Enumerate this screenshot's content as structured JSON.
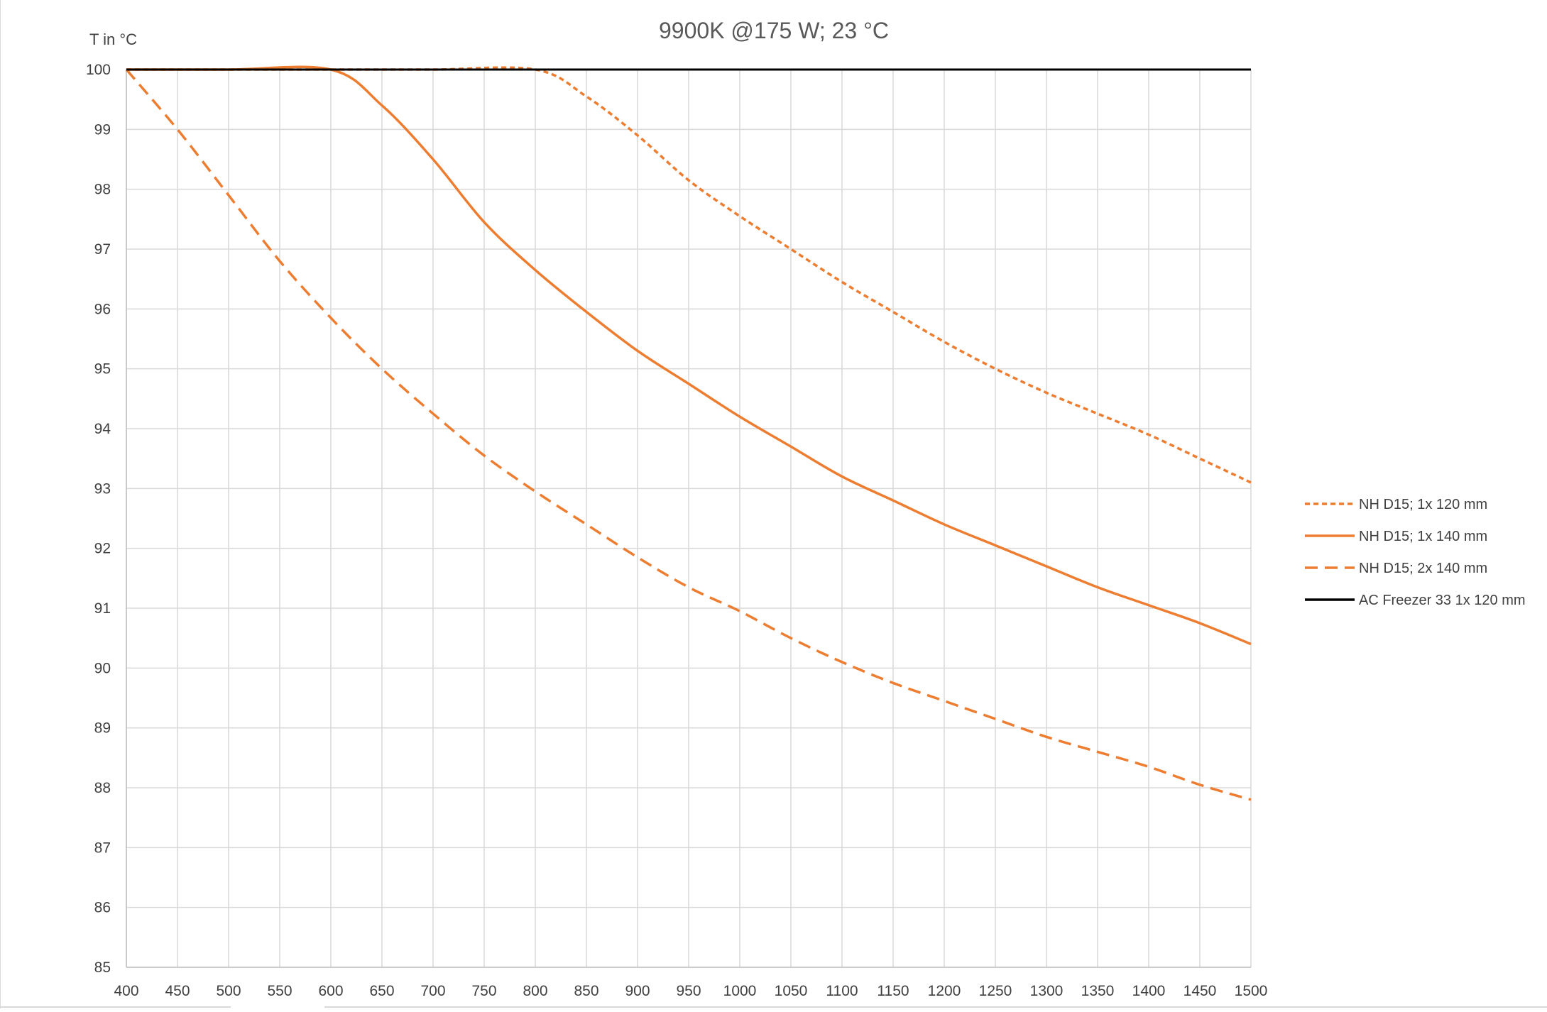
{
  "chart_data": {
    "type": "line",
    "title": "9900K @175 W; 23 °C",
    "ylabel": "T in °C",
    "xlabel": "",
    "xlim": [
      400,
      1500
    ],
    "ylim": [
      85,
      100
    ],
    "x_ticks": [
      400,
      450,
      500,
      550,
      600,
      650,
      700,
      750,
      800,
      850,
      900,
      950,
      1000,
      1050,
      1100,
      1150,
      1200,
      1250,
      1300,
      1350,
      1400,
      1450,
      1500
    ],
    "y_ticks": [
      85,
      86,
      87,
      88,
      89,
      90,
      91,
      92,
      93,
      94,
      95,
      96,
      97,
      98,
      99,
      100
    ],
    "grid": true,
    "legend_position": "right",
    "series": [
      {
        "name": "NH D15; 1x 120 mm",
        "color": "#ed7d31",
        "style": "dotted",
        "x": [
          400,
          500,
          600,
          700,
          800,
          850,
          900,
          950,
          1000,
          1050,
          1100,
          1150,
          1200,
          1250,
          1300,
          1350,
          1400,
          1450,
          1500
        ],
        "y": [
          100,
          100,
          100,
          100,
          100,
          99.55,
          98.9,
          98.15,
          97.55,
          97.0,
          96.45,
          95.95,
          95.45,
          95.0,
          94.6,
          94.25,
          93.9,
          93.5,
          93.1
        ]
      },
      {
        "name": "NH D15; 1x 140 mm",
        "color": "#ed7d31",
        "style": "solid",
        "x": [
          400,
          500,
          600,
          650,
          700,
          750,
          800,
          850,
          900,
          950,
          1000,
          1050,
          1100,
          1150,
          1200,
          1250,
          1300,
          1350,
          1400,
          1450,
          1500
        ],
        "y": [
          100,
          100,
          100,
          99.4,
          98.5,
          97.45,
          96.65,
          95.95,
          95.3,
          94.75,
          94.2,
          93.7,
          93.2,
          92.8,
          92.4,
          92.05,
          91.7,
          91.35,
          91.05,
          90.75,
          90.4
        ]
      },
      {
        "name": "NH D15; 2x 140 mm",
        "color": "#ed7d31",
        "style": "dashed",
        "x": [
          400,
          450,
          500,
          550,
          600,
          650,
          700,
          750,
          800,
          850,
          900,
          950,
          1000,
          1050,
          1100,
          1150,
          1200,
          1250,
          1300,
          1350,
          1400,
          1450,
          1500
        ],
        "y": [
          100,
          99.0,
          97.9,
          96.8,
          95.85,
          95.0,
          94.25,
          93.55,
          92.95,
          92.4,
          91.85,
          91.35,
          90.95,
          90.5,
          90.1,
          89.75,
          89.45,
          89.15,
          88.85,
          88.6,
          88.35,
          88.05,
          87.8
        ]
      },
      {
        "name": "AC Freezer 33 1x 120 mm",
        "color": "#000000",
        "style": "solid",
        "x": [
          400,
          1500
        ],
        "y": [
          100,
          100
        ]
      }
    ]
  }
}
